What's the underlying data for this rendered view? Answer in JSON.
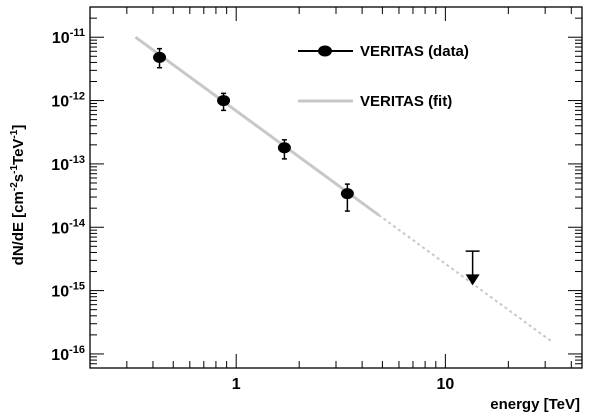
{
  "chart_data": {
    "type": "scatter",
    "xlabel": "energy [TeV]",
    "ylabel": "dN/dE [cm^-2 s^-1 TeV^-1]",
    "ylabel_parts": {
      "main": "dN/dE [cm",
      "exp1": "-2",
      "mid1": "s",
      "exp2": "-1",
      "mid2": "TeV",
      "exp3": "-1",
      "end": "]"
    },
    "x_scale": "log",
    "y_scale": "log",
    "xlim": [
      0.2,
      45
    ],
    "ylim": [
      6e-17,
      3e-11
    ],
    "x_ticks": [
      {
        "value": 1,
        "label": "1"
      },
      {
        "value": 10,
        "label": "10"
      }
    ],
    "y_ticks": [
      {
        "value": 1e-11,
        "base": "10",
        "exp": "-11"
      },
      {
        "value": 1e-12,
        "base": "10",
        "exp": "-12"
      },
      {
        "value": 1e-13,
        "base": "10",
        "exp": "-13"
      },
      {
        "value": 1e-14,
        "base": "10",
        "exp": "-14"
      },
      {
        "value": 1e-15,
        "base": "10",
        "exp": "-15"
      },
      {
        "value": 1e-16,
        "base": "10",
        "exp": "-16"
      }
    ],
    "series": [
      {
        "name": "VERITAS  (data)",
        "kind": "points",
        "color": "#000000",
        "points": [
          {
            "x": 0.43,
            "y": 4.8e-12,
            "y_low": 3.3e-12,
            "y_high": 6.6e-12
          },
          {
            "x": 0.87,
            "y": 1e-12,
            "y_low": 7e-13,
            "y_high": 1.3e-12
          },
          {
            "x": 1.7,
            "y": 1.8e-13,
            "y_low": 1.2e-13,
            "y_high": 2.4e-13
          },
          {
            "x": 3.4,
            "y": 3.4e-14,
            "y_low": 1.8e-14,
            "y_high": 4.8e-14
          }
        ],
        "upper_limits": [
          {
            "x": 13.5,
            "y": 4.2e-15,
            "y_limit": 1.3e-15
          }
        ]
      },
      {
        "name": "VERITAS  (fit)",
        "kind": "line",
        "color": "#c8c8c8",
        "solid_range": [
          0.33,
          4.8
        ],
        "dotted_range": [
          4.8,
          32
        ],
        "points": [
          {
            "x": 0.33,
            "y": 1e-11
          },
          {
            "x": 32,
            "y": 1.6e-16
          }
        ]
      }
    ],
    "legend_position": "top-right"
  }
}
